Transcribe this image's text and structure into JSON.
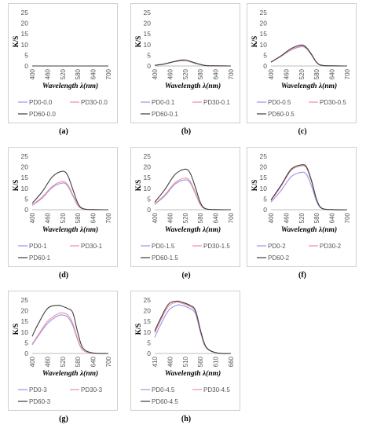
{
  "chart_data": [
    {
      "type": "line",
      "caption": "(a)",
      "ylabel": "K/S",
      "xlabel": "Wavelength λ(nm)",
      "ylim": [
        0,
        25
      ],
      "yticks": [
        "0",
        "5",
        "10",
        "15",
        "20",
        "25"
      ],
      "xlim": [
        400,
        700
      ],
      "xticks": [
        "400",
        "460",
        "520",
        "580",
        "640",
        "700"
      ],
      "x": [
        400,
        440,
        480,
        520,
        560,
        600,
        640,
        700
      ],
      "series": [
        {
          "name": "PD0-0.0",
          "color": "#9a95e8",
          "values": [
            0,
            0,
            0,
            0,
            0,
            0,
            0,
            0
          ]
        },
        {
          "name": "PD30-0.0",
          "color": "#ee8fa0",
          "values": [
            0,
            0,
            0,
            0,
            0,
            0,
            0,
            0
          ]
        },
        {
          "name": "PD60-0.0",
          "color": "#3d3d3d",
          "values": [
            0,
            0,
            0,
            0,
            0,
            0,
            0,
            0
          ]
        }
      ]
    },
    {
      "type": "line",
      "caption": "(b)",
      "ylabel": "K/S",
      "xlabel": "Wavelength λ(nm)",
      "ylim": [
        0,
        25
      ],
      "yticks": [
        "0",
        "5",
        "10",
        "15",
        "20",
        "25"
      ],
      "xlim": [
        400,
        700
      ],
      "xticks": [
        "400",
        "460",
        "520",
        "580",
        "640",
        "700"
      ],
      "x": [
        400,
        440,
        480,
        520,
        560,
        600,
        640,
        700
      ],
      "series": [
        {
          "name": "PD0-0.1",
          "color": "#9a95e8",
          "values": [
            0.3,
            1.0,
            2.0,
            2.5,
            1.2,
            0.2,
            0.05,
            0
          ]
        },
        {
          "name": "PD30-0.1",
          "color": "#ee8fa0",
          "values": [
            0.3,
            1.0,
            2.1,
            2.6,
            1.3,
            0.2,
            0.05,
            0
          ]
        },
        {
          "name": "PD60-0.1",
          "color": "#3d3d3d",
          "values": [
            0.3,
            1.0,
            2.2,
            2.8,
            1.4,
            0.2,
            0.05,
            0
          ]
        }
      ]
    },
    {
      "type": "line",
      "caption": "(c)",
      "ylabel": "K/S",
      "xlabel": "Wavelength λ(nm)",
      "ylim": [
        0,
        25
      ],
      "yticks": [
        "0",
        "5",
        "10",
        "15",
        "20",
        "25"
      ],
      "xlim": [
        400,
        700
      ],
      "xticks": [
        "400",
        "460",
        "520",
        "580",
        "640",
        "700"
      ],
      "x": [
        400,
        440,
        480,
        520,
        540,
        560,
        580,
        600,
        640,
        700
      ],
      "series": [
        {
          "name": "PD0-0.5",
          "color": "#9a95e8",
          "values": [
            1.8,
            4.5,
            7.5,
            9.0,
            8.0,
            5.0,
            1.5,
            0.3,
            0.05,
            0
          ]
        },
        {
          "name": "PD30-0.5",
          "color": "#ee8fa0",
          "values": [
            1.8,
            4.6,
            7.7,
            9.3,
            8.2,
            5.1,
            1.6,
            0.3,
            0.05,
            0
          ]
        },
        {
          "name": "PD60-0.5",
          "color": "#3d3d3d",
          "values": [
            1.8,
            4.8,
            8.2,
            9.8,
            8.6,
            5.4,
            1.7,
            0.3,
            0.05,
            0
          ]
        }
      ]
    },
    {
      "type": "line",
      "caption": "(d)",
      "ylabel": "K/S",
      "xlabel": "Wavelength λ(nm)",
      "ylim": [
        0,
        25
      ],
      "yticks": [
        "0",
        "5",
        "10",
        "15",
        "20",
        "25"
      ],
      "xlim": [
        400,
        700
      ],
      "xticks": [
        "400",
        "460",
        "520",
        "580",
        "640",
        "700"
      ],
      "x": [
        400,
        440,
        480,
        520,
        540,
        560,
        580,
        600,
        640,
        700
      ],
      "series": [
        {
          "name": "PD0-1",
          "color": "#9a95e8",
          "values": [
            2.0,
            5.5,
            10.5,
            12.5,
            11.0,
            6.5,
            2.0,
            0.4,
            0.05,
            0
          ]
        },
        {
          "name": "PD30-1",
          "color": "#ee8fa0",
          "values": [
            2.2,
            6.0,
            11.0,
            13.2,
            11.6,
            7.0,
            2.2,
            0.4,
            0.05,
            0
          ]
        },
        {
          "name": "PD60-1",
          "color": "#3d3d3d",
          "values": [
            3.0,
            8.5,
            15.5,
            18.0,
            16.0,
            9.5,
            3.0,
            0.5,
            0.05,
            0
          ]
        }
      ]
    },
    {
      "type": "line",
      "caption": "(e)",
      "ylabel": "K/S",
      "xlabel": "Wavelength λ(nm)",
      "ylim": [
        0,
        25
      ],
      "yticks": [
        "0",
        "5",
        "10",
        "15",
        "20",
        "25"
      ],
      "xlim": [
        400,
        700
      ],
      "xticks": [
        "400",
        "460",
        "520",
        "580",
        "640",
        "700"
      ],
      "x": [
        400,
        440,
        480,
        520,
        540,
        560,
        580,
        600,
        640,
        700
      ],
      "series": [
        {
          "name": "PD0-1.5",
          "color": "#9a95e8",
          "values": [
            2.5,
            6.5,
            12.0,
            14.0,
            12.5,
            7.5,
            2.3,
            0.4,
            0.05,
            0
          ]
        },
        {
          "name": "PD30-1.5",
          "color": "#ee8fa0",
          "values": [
            2.7,
            7.0,
            12.6,
            14.8,
            13.2,
            8.0,
            2.5,
            0.4,
            0.05,
            0
          ]
        },
        {
          "name": "PD60-1.5",
          "color": "#3d3d3d",
          "values": [
            3.5,
            9.5,
            16.5,
            19.0,
            17.0,
            10.5,
            3.3,
            0.5,
            0.05,
            0
          ]
        }
      ]
    },
    {
      "type": "line",
      "caption": "(f)",
      "ylabel": "K/S",
      "xlabel": "Wavelength λ(nm)",
      "ylim": [
        0,
        25
      ],
      "yticks": [
        "0",
        "5",
        "10",
        "15",
        "20",
        "25"
      ],
      "xlim": [
        400,
        700
      ],
      "xticks": [
        "400",
        "460",
        "520",
        "580",
        "640",
        "700"
      ],
      "x": [
        400,
        440,
        480,
        520,
        540,
        560,
        580,
        600,
        640,
        700
      ],
      "series": [
        {
          "name": "PD0-2",
          "color": "#9a95e8",
          "values": [
            3.5,
            9.0,
            15.5,
            17.5,
            16.5,
            11.0,
            3.8,
            0.6,
            0.05,
            0
          ]
        },
        {
          "name": "PD30-2",
          "color": "#ee8fa0",
          "values": [
            4.2,
            11.0,
            18.5,
            20.5,
            19.5,
            13.0,
            4.5,
            0.7,
            0.05,
            0
          ]
        },
        {
          "name": "PD60-2",
          "color": "#3d3d3d",
          "values": [
            4.5,
            11.5,
            19.0,
            21.0,
            20.0,
            13.5,
            4.7,
            0.7,
            0.05,
            0
          ]
        }
      ]
    },
    {
      "type": "line",
      "caption": "(g)",
      "ylabel": "K/S",
      "xlabel": "Wavelength λ(nm)",
      "ylim": [
        0,
        25
      ],
      "yticks": [
        "0",
        "5",
        "10",
        "15",
        "20",
        "25"
      ],
      "xlim": [
        400,
        700
      ],
      "xticks": [
        "400",
        "460",
        "520",
        "580",
        "640",
        "700"
      ],
      "x": [
        400,
        420,
        460,
        500,
        520,
        540,
        560,
        580,
        600,
        640,
        700
      ],
      "series": [
        {
          "name": "PD0-3",
          "color": "#9a95e8",
          "values": [
            4.0,
            7.5,
            14.0,
            17.5,
            18.0,
            17.0,
            13.0,
            6.0,
            1.5,
            0.1,
            0
          ]
        },
        {
          "name": "PD30-3",
          "color": "#ee8fa0",
          "values": [
            4.5,
            8.0,
            15.0,
            18.5,
            19.0,
            18.0,
            14.0,
            6.5,
            1.6,
            0.1,
            0
          ]
        },
        {
          "name": "PD60-3",
          "color": "#3d3d3d",
          "values": [
            8.0,
            13.0,
            21.0,
            22.5,
            22.0,
            21.0,
            19.0,
            9.5,
            2.5,
            0.2,
            0
          ]
        }
      ]
    },
    {
      "type": "line",
      "caption": "(h)",
      "ylabel": "K/S",
      "xlabel": "Wavelength λ(nm)",
      "ylim": [
        0,
        25
      ],
      "yticks": [
        "0",
        "5",
        "10",
        "15",
        "20",
        "25"
      ],
      "xlim": [
        410,
        690
      ],
      "xticks": [
        "410",
        "460",
        "510",
        "560",
        "610",
        "660"
      ],
      "x": [
        410,
        430,
        460,
        490,
        510,
        540,
        560,
        580,
        600,
        640,
        690
      ],
      "series": [
        {
          "name": "PD0-4.5",
          "color": "#9a95e8",
          "values": [
            7.5,
            13.0,
            20.0,
            22.5,
            22.5,
            21.0,
            18.5,
            9.0,
            2.5,
            0.2,
            0
          ]
        },
        {
          "name": "PD30-4.5",
          "color": "#ee8fa0",
          "values": [
            9.5,
            15.0,
            22.0,
            24.0,
            23.5,
            22.0,
            19.5,
            9.5,
            2.7,
            0.2,
            0
          ]
        },
        {
          "name": "PD60-4.5",
          "color": "#3d3d3d",
          "values": [
            10.5,
            16.0,
            23.0,
            24.5,
            24.0,
            22.5,
            20.0,
            10.0,
            2.8,
            0.2,
            0
          ]
        }
      ]
    }
  ]
}
